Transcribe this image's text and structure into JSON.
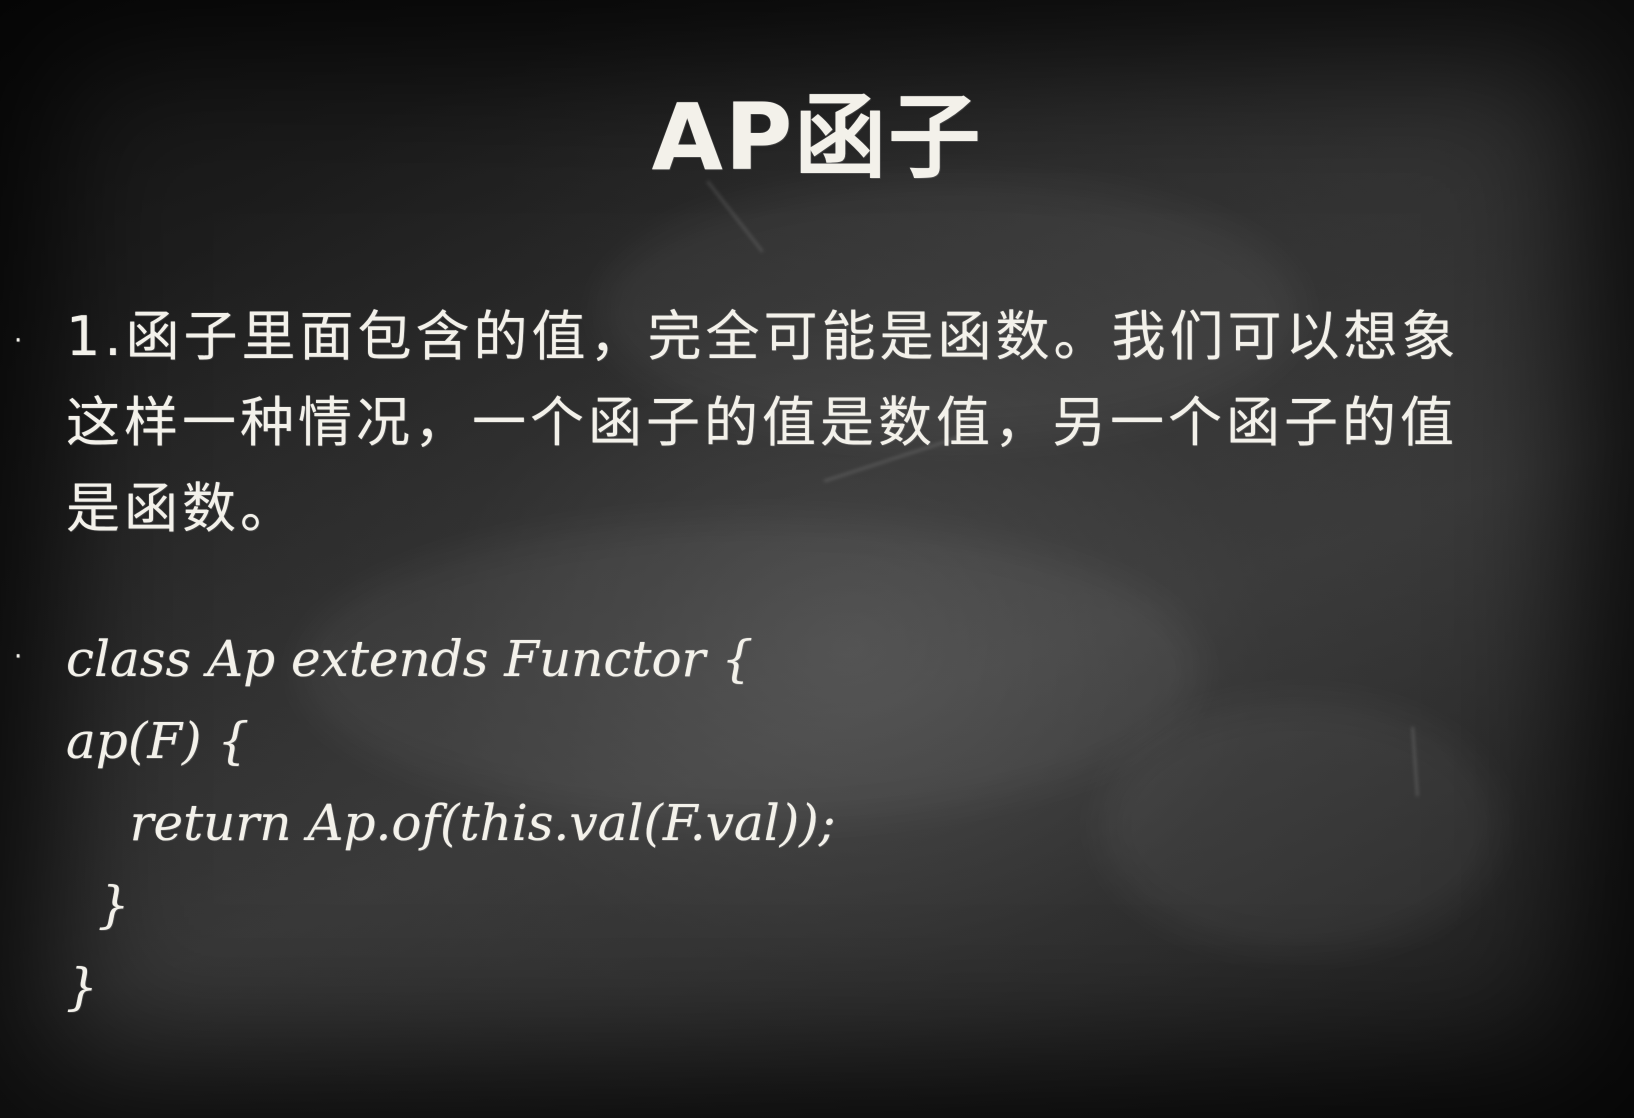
{
  "slide": {
    "title": "AP函子",
    "bullet_symbol": "·",
    "paragraph": {
      "line1": "1.函子里面包含的值，完全可能是函数。我们可以想象",
      "line2": "这样一种情况，一个函子的值是数值，另一个函子的值",
      "line3": "是函数。"
    },
    "code": {
      "line1": "class Ap extends Functor {",
      "line2": "ap(F) {",
      "line3": "    return Ap.of(this.val(F.val));",
      "line4": "  }",
      "line5": "}"
    }
  }
}
